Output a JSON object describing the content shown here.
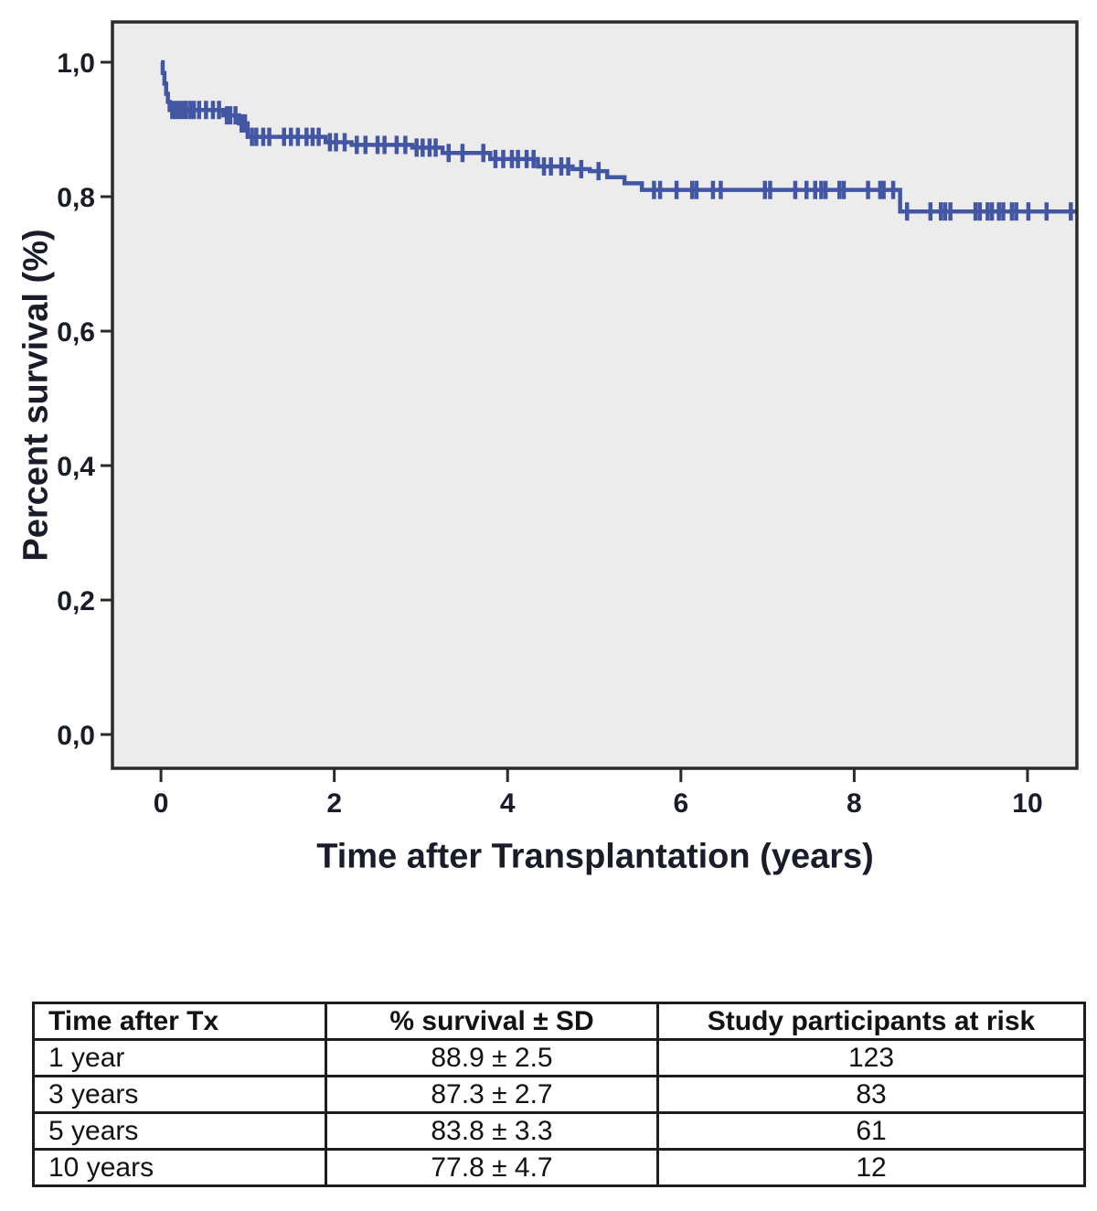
{
  "chart_data": {
    "type": "line",
    "subtype": "kaplan_meier_step",
    "title": "",
    "xlabel": "Time after Transplantation (years)",
    "ylabel": "Percent survival (%)",
    "x_tick_values": [
      0,
      2,
      4,
      6,
      8,
      10
    ],
    "x_tick_labels": [
      "0",
      "2",
      "4",
      "6",
      "8",
      "10"
    ],
    "y_tick_values": [
      0.0,
      0.2,
      0.4,
      0.6,
      0.8,
      1.0
    ],
    "y_tick_labels": [
      "0,0",
      "0,2",
      "0,4",
      "0,6",
      "0,8",
      "1,0"
    ],
    "xlim": [
      -0.56,
      10.57
    ],
    "ylim": [
      -0.0503,
      1.0599
    ],
    "grid": false,
    "legend_position": "none",
    "plot_bg": "#ECECEC",
    "frame_color": "#2A2A2A",
    "line_color": "#4356A4",
    "text_color": "#1A1D29",
    "steps": [
      [
        0.0,
        1.0
      ],
      [
        0.02,
        0.984
      ],
      [
        0.04,
        0.968
      ],
      [
        0.06,
        0.953
      ],
      [
        0.08,
        0.941
      ],
      [
        0.1,
        0.929
      ],
      [
        0.72,
        0.921
      ],
      [
        0.9,
        0.909
      ],
      [
        1.0,
        0.889
      ],
      [
        1.9,
        0.881
      ],
      [
        2.2,
        0.877
      ],
      [
        2.9,
        0.873
      ],
      [
        3.25,
        0.865
      ],
      [
        3.8,
        0.856
      ],
      [
        4.35,
        0.845
      ],
      [
        4.75,
        0.841
      ],
      [
        4.95,
        0.838
      ],
      [
        5.15,
        0.829
      ],
      [
        5.35,
        0.82
      ],
      [
        5.55,
        0.81
      ],
      [
        8.53,
        0.778
      ]
    ],
    "censors": [
      [
        0.13,
        0.929
      ],
      [
        0.17,
        0.929
      ],
      [
        0.21,
        0.929
      ],
      [
        0.25,
        0.929
      ],
      [
        0.29,
        0.929
      ],
      [
        0.34,
        0.929
      ],
      [
        0.38,
        0.929
      ],
      [
        0.44,
        0.929
      ],
      [
        0.52,
        0.929
      ],
      [
        0.6,
        0.929
      ],
      [
        0.67,
        0.929
      ],
      [
        0.76,
        0.921
      ],
      [
        0.8,
        0.921
      ],
      [
        0.86,
        0.921
      ],
      [
        0.93,
        0.909
      ],
      [
        0.97,
        0.909
      ],
      [
        1.05,
        0.889
      ],
      [
        1.1,
        0.889
      ],
      [
        1.18,
        0.889
      ],
      [
        1.25,
        0.889
      ],
      [
        1.42,
        0.889
      ],
      [
        1.5,
        0.889
      ],
      [
        1.58,
        0.889
      ],
      [
        1.68,
        0.889
      ],
      [
        1.75,
        0.889
      ],
      [
        1.82,
        0.889
      ],
      [
        1.95,
        0.881
      ],
      [
        2.02,
        0.881
      ],
      [
        2.12,
        0.881
      ],
      [
        2.26,
        0.877
      ],
      [
        2.36,
        0.877
      ],
      [
        2.5,
        0.877
      ],
      [
        2.58,
        0.877
      ],
      [
        2.72,
        0.877
      ],
      [
        2.82,
        0.877
      ],
      [
        2.95,
        0.873
      ],
      [
        3.02,
        0.873
      ],
      [
        3.1,
        0.873
      ],
      [
        3.17,
        0.873
      ],
      [
        3.32,
        0.865
      ],
      [
        3.48,
        0.865
      ],
      [
        3.72,
        0.865
      ],
      [
        3.86,
        0.856
      ],
      [
        3.95,
        0.856
      ],
      [
        4.05,
        0.856
      ],
      [
        4.12,
        0.856
      ],
      [
        4.22,
        0.856
      ],
      [
        4.3,
        0.856
      ],
      [
        4.42,
        0.845
      ],
      [
        4.5,
        0.845
      ],
      [
        4.62,
        0.845
      ],
      [
        4.7,
        0.845
      ],
      [
        4.85,
        0.841
      ],
      [
        5.05,
        0.838
      ],
      [
        5.69,
        0.81
      ],
      [
        5.76,
        0.81
      ],
      [
        5.95,
        0.81
      ],
      [
        6.13,
        0.81
      ],
      [
        6.18,
        0.81
      ],
      [
        6.37,
        0.81
      ],
      [
        6.46,
        0.81
      ],
      [
        6.97,
        0.81
      ],
      [
        7.03,
        0.81
      ],
      [
        7.32,
        0.81
      ],
      [
        7.45,
        0.81
      ],
      [
        7.55,
        0.81
      ],
      [
        7.62,
        0.81
      ],
      [
        7.67,
        0.81
      ],
      [
        7.83,
        0.81
      ],
      [
        7.88,
        0.81
      ],
      [
        8.16,
        0.81
      ],
      [
        8.3,
        0.81
      ],
      [
        8.34,
        0.81
      ],
      [
        8.45,
        0.81
      ],
      [
        8.61,
        0.778
      ],
      [
        8.88,
        0.778
      ],
      [
        9.0,
        0.778
      ],
      [
        9.05,
        0.778
      ],
      [
        9.11,
        0.778
      ],
      [
        9.4,
        0.778
      ],
      [
        9.45,
        0.778
      ],
      [
        9.54,
        0.778
      ],
      [
        9.59,
        0.778
      ],
      [
        9.67,
        0.778
      ],
      [
        9.72,
        0.778
      ],
      [
        9.82,
        0.778
      ],
      [
        9.87,
        0.778
      ],
      [
        10.01,
        0.778
      ],
      [
        10.22,
        0.778
      ],
      [
        10.5,
        0.778
      ]
    ]
  },
  "risk_table": {
    "headers": [
      "Time after Tx",
      "% survival ± SD",
      "Study participants at risk"
    ],
    "rows": [
      [
        "1 year",
        "88.9 ± 2.5",
        "123"
      ],
      [
        "3 years",
        "87.3 ± 2.7",
        "83"
      ],
      [
        "5 years",
        "83.8 ± 3.3",
        "61"
      ],
      [
        "10 years",
        "77.8 ± 4.7",
        "12"
      ]
    ]
  }
}
